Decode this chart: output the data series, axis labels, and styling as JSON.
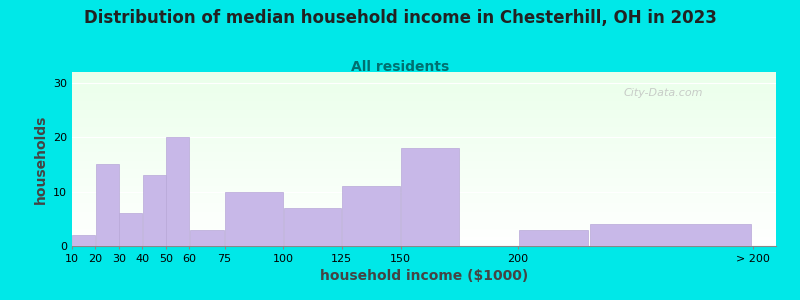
{
  "title": "Distribution of median household income in Chesterhill, OH in 2023",
  "subtitle": "All residents",
  "xlabel": "household income ($1000)",
  "ylabel": "households",
  "bar_color": "#c8b8e8",
  "bar_edge_color": "#b8a8d8",
  "background_color": "#00e8e8",
  "ylim": [
    0,
    32
  ],
  "yticks": [
    0,
    10,
    20,
    30
  ],
  "bar_heights": [
    2,
    15,
    6,
    13,
    20,
    3,
    10,
    7,
    11,
    18,
    3,
    4
  ],
  "bar_lefts": [
    10,
    20,
    30,
    40,
    50,
    60,
    75,
    100,
    125,
    150,
    200,
    230
  ],
  "bar_widths": [
    10,
    10,
    10,
    10,
    10,
    15,
    25,
    25,
    25,
    25,
    30,
    70
  ],
  "xtick_positions": [
    10,
    20,
    30,
    40,
    50,
    60,
    75,
    100,
    125,
    150,
    200,
    300
  ],
  "xtick_labels": [
    "10",
    "20",
    "30",
    "40",
    "50",
    "60",
    "75",
    "100",
    "125",
    "150",
    "200",
    "> 200"
  ],
  "xlim": [
    10,
    310
  ],
  "title_fontsize": 12,
  "subtitle_fontsize": 10,
  "axis_label_fontsize": 10,
  "tick_fontsize": 8,
  "watermark_text": "City-Data.com",
  "subtitle_color": "#007070",
  "title_color": "#222222",
  "axis_label_color": "#444444"
}
